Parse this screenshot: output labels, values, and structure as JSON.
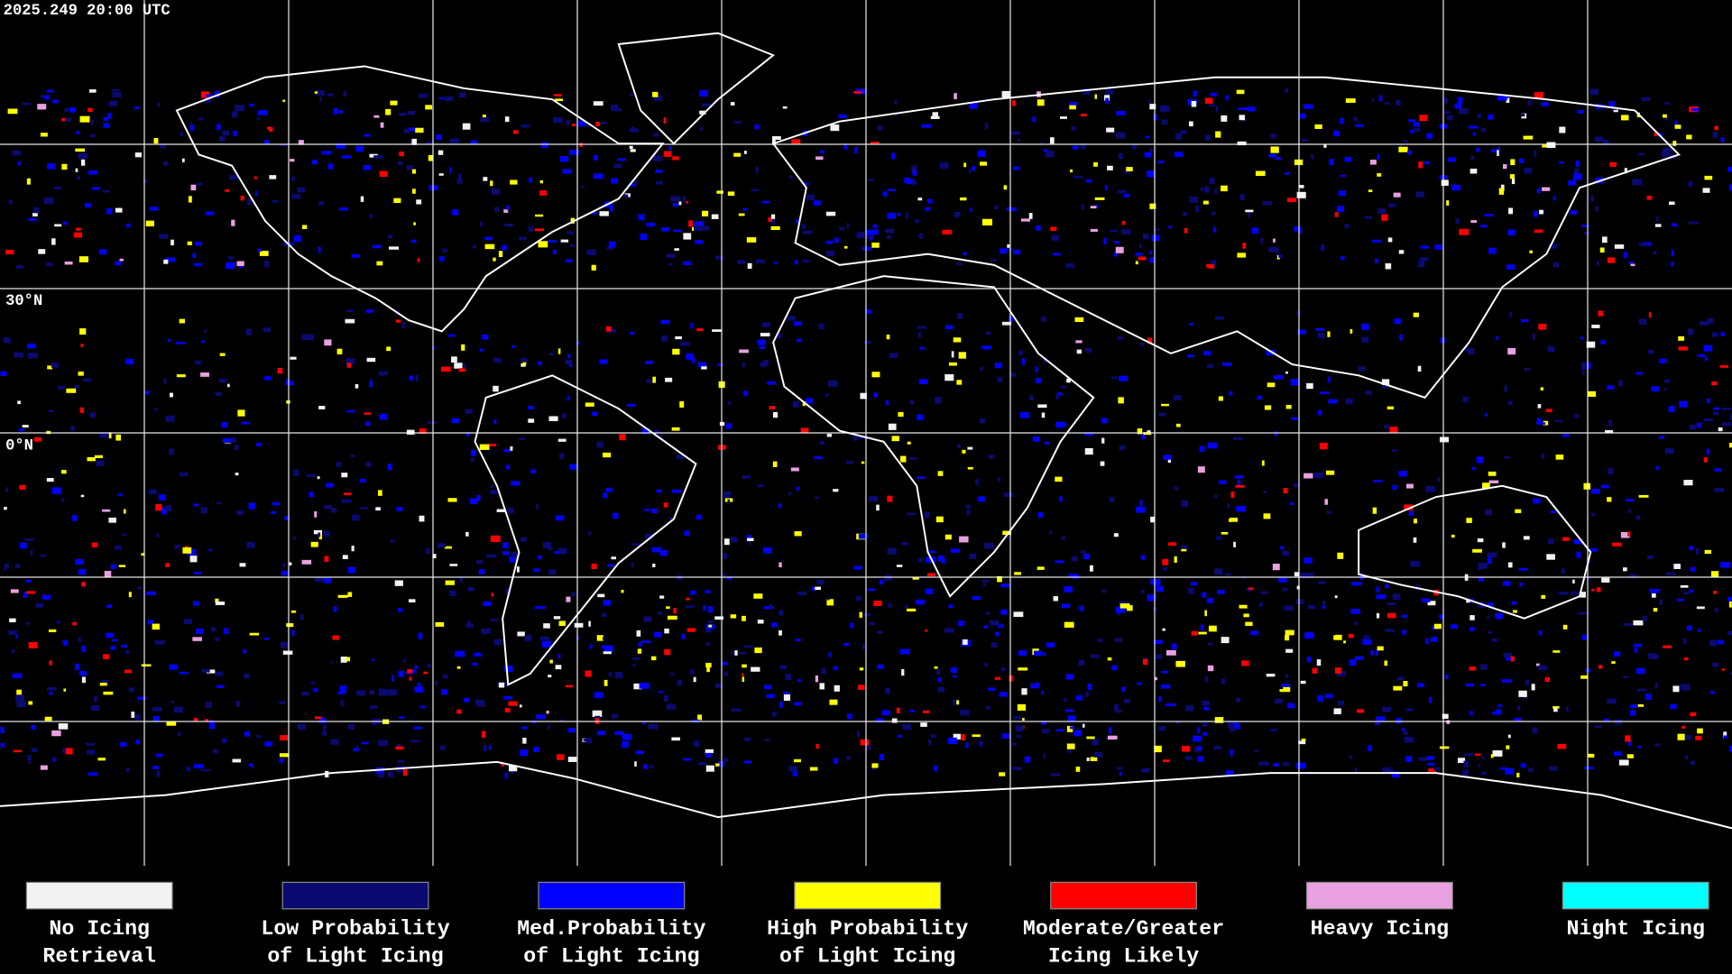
{
  "header": {
    "timestamp": "2025.249 20:00 UTC"
  },
  "latitude_labels": [
    "30°N",
    "0°N"
  ],
  "legend": [
    {
      "lines": [
        "No Icing",
        "Retrieval"
      ],
      "color": "#f2f2f2"
    },
    {
      "lines": [
        "Low Probability",
        "of Light Icing"
      ],
      "color": "#0a0a72"
    },
    {
      "lines": [
        "Med.Probability",
        "of Light Icing"
      ],
      "color": "#0000ff"
    },
    {
      "lines": [
        "High Probability",
        "of Light Icing"
      ],
      "color": "#ffff00"
    },
    {
      "lines": [
        "Moderate/Greater",
        "Icing Likely"
      ],
      "color": "#ff0000"
    },
    {
      "lines": [
        "Heavy Icing"
      ],
      "color": "#e8a0e0"
    },
    {
      "lines": [
        "Night Icing"
      ],
      "color": "#00ffff"
    }
  ]
}
